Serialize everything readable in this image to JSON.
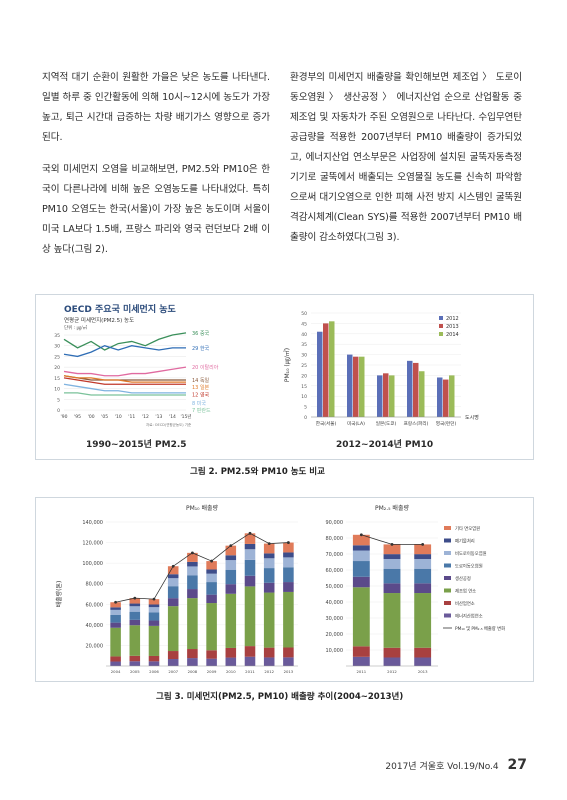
{
  "left_column": [
    "지역적 대기 순환이 원활한 가을은 낮은 농도를 나타낸다. 일별 하루 중 인간활동에 의해 10시~12시에 농도가 가장 높고, 퇴근 시간대 급증하는 차량 배기가스 영향으로 증가된다.",
    "국외 미세먼지 오염을 비교해보면, PM2.5와 PM10은 한국이 다른나라에 비해 높은 오염농도를 나타내었다. 특히 PM10 오염도는 한국(서울)이 가장 높은 농도이며 서울이 미국 LA보다 1.5배, 프랑스 파리와 영국 런던보다 2배 이상 높다(그림 2)."
  ],
  "right_column": [
    "환경부의 미세먼지 배출량을 확인해보면 제조업 〉 도로이동오염원 〉 생산공정 〉 에너지산업 순으로 산업활동 중 제조업 및 자동차가 주된 오염원으로 나타난다. 수입무연탄 공급량을 적용한 2007년부터 PM10 배출량이 증가되었고, 에너지산업 연소부문은 사업장에 설치된 굴뚝자동측정기기로 굴뚝에서 배출되는 오염물질 농도를 신속히 파악함으로써 대기오염으로 인한 피해 사전 방지 시스템인 굴뚝원격감시체계(Clean SYS)를 적용한 2007년부터 PM10 배출량이 감소하였다(그림 3)."
  ],
  "figure2": {
    "caption": "그림 2. PM2.5와 PM10 농도 비교",
    "left_sublabel": "1990~2015년 PM2.5",
    "right_sublabel": "2012~2014년 PM10",
    "oecd_title": "OECD 주요국 미세먼지 농도",
    "oecd_subtitle": "연평균 미세먼지(PM2.5) 농도",
    "oecd_unit": "단위 : ㎍/㎥",
    "oecd_source": "자료: OECD(연평균농도) 기준"
  },
  "figure3": {
    "caption": "그림 3. 미세먼지(PM2.5, PM10) 배출량 추이(2004~2013년)",
    "pm10_title": "PM₁₀ 배출량",
    "pm25_title": "PM₂.₅ 배출량",
    "ylabel": "배출량(톤)"
  },
  "footer": {
    "issue": "2017년 겨울호 Vol.19/No.4",
    "page": "27"
  },
  "chart_data": [
    {
      "type": "line",
      "title": "OECD 주요국 미세먼지 농도",
      "x": [
        "'90",
        "'95",
        "'00",
        "'05",
        "'10",
        "'11",
        "'12",
        "'13",
        "'14",
        "'15년"
      ],
      "ylim": [
        0,
        35
      ],
      "yticks": [
        0,
        5,
        10,
        15,
        20,
        25,
        30,
        35
      ],
      "series": [
        {
          "name": "중국",
          "label": "36 중국",
          "color": "#3a8f5a",
          "values": [
            33,
            29,
            32,
            28,
            31,
            32,
            30,
            33,
            35,
            36
          ]
        },
        {
          "name": "한국",
          "label": "29 한국",
          "color": "#2f6db5",
          "values": [
            26,
            25,
            27,
            30,
            28,
            30,
            29,
            28,
            29,
            29
          ]
        },
        {
          "name": "이탈리아",
          "label": "20 이탈리아",
          "color": "#e06aa0",
          "values": [
            18,
            17,
            17,
            16,
            16,
            17,
            17,
            18,
            19,
            20
          ]
        },
        {
          "name": "독일",
          "label": "14 독일",
          "color": "#8b5a3c",
          "values": [
            16,
            15,
            14,
            14,
            14,
            14,
            14,
            14,
            14,
            14
          ]
        },
        {
          "name": "일본",
          "label": "13 일본",
          "color": "#e07a2a",
          "values": [
            16,
            15,
            15,
            14,
            14,
            13,
            13,
            13,
            13,
            13
          ]
        },
        {
          "name": "영국",
          "label": "12 영국",
          "color": "#c0392b",
          "values": [
            15,
            14,
            13,
            12,
            12,
            12,
            12,
            12,
            12,
            12
          ]
        },
        {
          "name": "미국",
          "label": "8 미국",
          "color": "#7fb3e0",
          "values": [
            12,
            11,
            10,
            9,
            9,
            8,
            8,
            8,
            8,
            8
          ]
        },
        {
          "name": "핀란드",
          "label": "7 핀란드",
          "color": "#7ac29a",
          "values": [
            8,
            8,
            7,
            7,
            7,
            7,
            7,
            7,
            7,
            7
          ]
        }
      ]
    },
    {
      "type": "bar",
      "ylabel": "PM₁₀ (㎍/㎥)",
      "xlabel": "도시명",
      "ylim": [
        0,
        50
      ],
      "yticks": [
        0,
        5,
        10,
        15,
        20,
        25,
        30,
        35,
        40,
        45,
        50
      ],
      "categories": [
        "한국(서울)",
        "미국(LA)",
        "일본(도쿄)",
        "프랑스(파리)",
        "영국(런던)"
      ],
      "series": [
        {
          "name": "2012",
          "color": "#5b6fb8",
          "values": [
            41,
            30,
            20,
            27,
            19
          ]
        },
        {
          "name": "2013",
          "color": "#c0504d",
          "values": [
            45,
            29,
            21,
            26,
            18
          ]
        },
        {
          "name": "2014",
          "color": "#9bbb59",
          "values": [
            46,
            29,
            20,
            22,
            20
          ]
        }
      ]
    },
    {
      "type": "bar",
      "stacked": true,
      "title": "PM₁₀ 배출량",
      "ylabel": "배출량(톤)",
      "ylim": [
        0,
        140000
      ],
      "yticks": [
        "20,000",
        "40,000",
        "60,000",
        "80,000",
        "100,000",
        "120,000",
        "140,000"
      ],
      "categories": [
        "2004",
        "2005",
        "2006",
        "2007",
        "2008",
        "2009",
        "2010",
        "2011",
        "2012",
        "2013"
      ],
      "totals": [
        62000,
        66000,
        65000,
        97000,
        110000,
        102000,
        117000,
        129000,
        119000,
        120000
      ]
    },
    {
      "type": "bar",
      "stacked": true,
      "title": "PM₂.₅ 배출량",
      "ylim": [
        0,
        90000
      ],
      "yticks": [
        "10,000",
        "20,000",
        "30,000",
        "40,000",
        "50,000",
        "60,000",
        "70,000",
        "80,000",
        "90,000"
      ],
      "categories": [
        "2011",
        "2012",
        "2013"
      ],
      "totals": [
        82000,
        76000,
        76000
      ],
      "legend": [
        "기타 면오염원",
        "폐기물처리",
        "비도로이동오염원",
        "도로이동오염원",
        "생산공정",
        "제조업 연소",
        "비산업연소",
        "에너지산업연소",
        "PM₁₀ 및 PM₂.₅ 배출량 변화"
      ],
      "legend_colors": [
        "#e07b5a",
        "#3d4d8a",
        "#9db3d6",
        "#4a78a8",
        "#5b4a8a",
        "#7aa04a",
        "#a84040",
        "#6a5a9a",
        "#333333"
      ]
    }
  ]
}
